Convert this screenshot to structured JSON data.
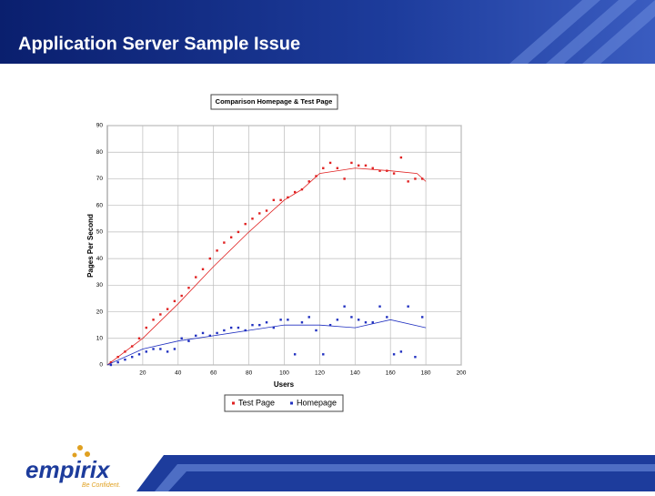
{
  "slide_title": "Application Server Sample Issue",
  "logo": {
    "name": "empirix",
    "tagline": "Be Confident."
  },
  "chart_data": {
    "type": "scatter",
    "title": "Comparison Homepage & Test Page",
    "x_label": "Users",
    "y_label": "Pages Per Second",
    "xlim": [
      0,
      200
    ],
    "xticks": [
      20,
      40,
      60,
      80,
      100,
      120,
      140,
      160,
      180,
      200
    ],
    "ylim": [
      0,
      90
    ],
    "yticks": [
      0,
      10,
      20,
      30,
      40,
      50,
      60,
      70,
      80,
      90
    ],
    "grid": true,
    "legend": "bottom",
    "series": [
      {
        "name": "Test Page",
        "color": "#e02020",
        "type": "scatter",
        "x": [
          2,
          6,
          10,
          14,
          18,
          22,
          26,
          30,
          34,
          38,
          42,
          46,
          50,
          54,
          58,
          62,
          66,
          70,
          74,
          78,
          82,
          86,
          90,
          94,
          98,
          102,
          106,
          110,
          114,
          118,
          122,
          126,
          130,
          134,
          138,
          142,
          146,
          150,
          154,
          158,
          162,
          166,
          170,
          174,
          178
        ],
        "values": [
          1,
          3,
          5,
          7,
          10,
          14,
          17,
          19,
          21,
          24,
          26,
          29,
          33,
          36,
          40,
          43,
          46,
          48,
          50,
          53,
          55,
          57,
          58,
          62,
          62,
          63,
          65,
          66,
          69,
          71,
          74,
          76,
          74,
          70,
          76,
          75,
          75,
          74,
          73,
          73,
          72,
          78,
          69,
          70,
          70
        ]
      },
      {
        "name": "Homepage",
        "color": "#2030c0",
        "type": "scatter",
        "x": [
          2,
          6,
          10,
          14,
          18,
          22,
          26,
          30,
          34,
          38,
          42,
          46,
          50,
          54,
          58,
          62,
          66,
          70,
          74,
          78,
          82,
          86,
          90,
          94,
          98,
          102,
          106,
          110,
          114,
          118,
          122,
          126,
          130,
          134,
          138,
          142,
          146,
          150,
          154,
          158,
          162,
          166,
          170,
          174,
          178
        ],
        "values": [
          0,
          1,
          2,
          3,
          4,
          5,
          6,
          6,
          5,
          6,
          10,
          9,
          11,
          12,
          11,
          12,
          13,
          14,
          14,
          13,
          15,
          15,
          16,
          14,
          17,
          17,
          4,
          16,
          18,
          13,
          4,
          15,
          17,
          22,
          18,
          17,
          16,
          16,
          22,
          18,
          4,
          5,
          22,
          3,
          18
        ]
      },
      {
        "color": "#e02020",
        "type": "line",
        "x": [
          0,
          20,
          40,
          60,
          80,
          100,
          110,
          120,
          140,
          160,
          175,
          180
        ],
        "values": [
          0,
          10,
          23,
          37,
          50,
          62,
          66,
          72,
          74,
          73,
          72,
          69
        ]
      },
      {
        "color": "#2030c0",
        "type": "line",
        "x": [
          0,
          20,
          40,
          60,
          80,
          100,
          120,
          140,
          160,
          180
        ],
        "values": [
          0,
          6,
          9,
          11,
          13,
          15,
          15,
          14,
          17,
          14
        ]
      }
    ]
  }
}
